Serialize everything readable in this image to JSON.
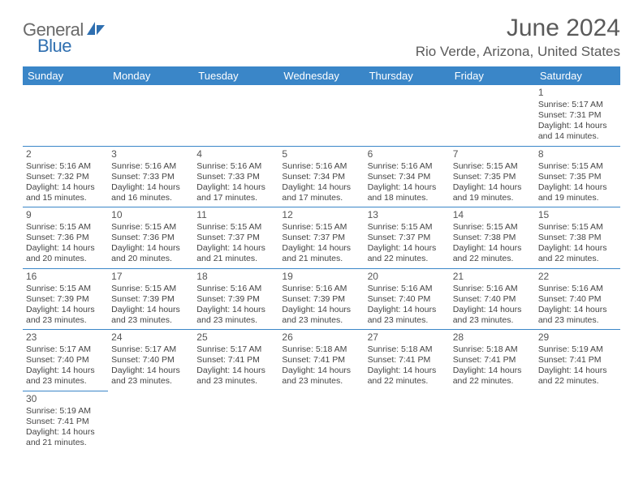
{
  "logo": {
    "text1": "General",
    "text2": "Blue"
  },
  "title": "June 2024",
  "location": "Rio Verde, Arizona, United States",
  "colors": {
    "header_bg": "#3a86c8",
    "header_text": "#ffffff",
    "border": "#3a86c8",
    "text": "#444444",
    "title_text": "#5a5a5a",
    "logo_gray": "#6a6a6a",
    "logo_blue": "#2f6fb0"
  },
  "day_headers": [
    "Sunday",
    "Monday",
    "Tuesday",
    "Wednesday",
    "Thursday",
    "Friday",
    "Saturday"
  ],
  "weeks": [
    [
      null,
      null,
      null,
      null,
      null,
      null,
      {
        "n": "1",
        "sr": "Sunrise: 5:17 AM",
        "ss": "Sunset: 7:31 PM",
        "d1": "Daylight: 14 hours",
        "d2": "and 14 minutes."
      }
    ],
    [
      {
        "n": "2",
        "sr": "Sunrise: 5:16 AM",
        "ss": "Sunset: 7:32 PM",
        "d1": "Daylight: 14 hours",
        "d2": "and 15 minutes."
      },
      {
        "n": "3",
        "sr": "Sunrise: 5:16 AM",
        "ss": "Sunset: 7:33 PM",
        "d1": "Daylight: 14 hours",
        "d2": "and 16 minutes."
      },
      {
        "n": "4",
        "sr": "Sunrise: 5:16 AM",
        "ss": "Sunset: 7:33 PM",
        "d1": "Daylight: 14 hours",
        "d2": "and 17 minutes."
      },
      {
        "n": "5",
        "sr": "Sunrise: 5:16 AM",
        "ss": "Sunset: 7:34 PM",
        "d1": "Daylight: 14 hours",
        "d2": "and 17 minutes."
      },
      {
        "n": "6",
        "sr": "Sunrise: 5:16 AM",
        "ss": "Sunset: 7:34 PM",
        "d1": "Daylight: 14 hours",
        "d2": "and 18 minutes."
      },
      {
        "n": "7",
        "sr": "Sunrise: 5:15 AM",
        "ss": "Sunset: 7:35 PM",
        "d1": "Daylight: 14 hours",
        "d2": "and 19 minutes."
      },
      {
        "n": "8",
        "sr": "Sunrise: 5:15 AM",
        "ss": "Sunset: 7:35 PM",
        "d1": "Daylight: 14 hours",
        "d2": "and 19 minutes."
      }
    ],
    [
      {
        "n": "9",
        "sr": "Sunrise: 5:15 AM",
        "ss": "Sunset: 7:36 PM",
        "d1": "Daylight: 14 hours",
        "d2": "and 20 minutes."
      },
      {
        "n": "10",
        "sr": "Sunrise: 5:15 AM",
        "ss": "Sunset: 7:36 PM",
        "d1": "Daylight: 14 hours",
        "d2": "and 20 minutes."
      },
      {
        "n": "11",
        "sr": "Sunrise: 5:15 AM",
        "ss": "Sunset: 7:37 PM",
        "d1": "Daylight: 14 hours",
        "d2": "and 21 minutes."
      },
      {
        "n": "12",
        "sr": "Sunrise: 5:15 AM",
        "ss": "Sunset: 7:37 PM",
        "d1": "Daylight: 14 hours",
        "d2": "and 21 minutes."
      },
      {
        "n": "13",
        "sr": "Sunrise: 5:15 AM",
        "ss": "Sunset: 7:37 PM",
        "d1": "Daylight: 14 hours",
        "d2": "and 22 minutes."
      },
      {
        "n": "14",
        "sr": "Sunrise: 5:15 AM",
        "ss": "Sunset: 7:38 PM",
        "d1": "Daylight: 14 hours",
        "d2": "and 22 minutes."
      },
      {
        "n": "15",
        "sr": "Sunrise: 5:15 AM",
        "ss": "Sunset: 7:38 PM",
        "d1": "Daylight: 14 hours",
        "d2": "and 22 minutes."
      }
    ],
    [
      {
        "n": "16",
        "sr": "Sunrise: 5:15 AM",
        "ss": "Sunset: 7:39 PM",
        "d1": "Daylight: 14 hours",
        "d2": "and 23 minutes."
      },
      {
        "n": "17",
        "sr": "Sunrise: 5:15 AM",
        "ss": "Sunset: 7:39 PM",
        "d1": "Daylight: 14 hours",
        "d2": "and 23 minutes."
      },
      {
        "n": "18",
        "sr": "Sunrise: 5:16 AM",
        "ss": "Sunset: 7:39 PM",
        "d1": "Daylight: 14 hours",
        "d2": "and 23 minutes."
      },
      {
        "n": "19",
        "sr": "Sunrise: 5:16 AM",
        "ss": "Sunset: 7:39 PM",
        "d1": "Daylight: 14 hours",
        "d2": "and 23 minutes."
      },
      {
        "n": "20",
        "sr": "Sunrise: 5:16 AM",
        "ss": "Sunset: 7:40 PM",
        "d1": "Daylight: 14 hours",
        "d2": "and 23 minutes."
      },
      {
        "n": "21",
        "sr": "Sunrise: 5:16 AM",
        "ss": "Sunset: 7:40 PM",
        "d1": "Daylight: 14 hours",
        "d2": "and 23 minutes."
      },
      {
        "n": "22",
        "sr": "Sunrise: 5:16 AM",
        "ss": "Sunset: 7:40 PM",
        "d1": "Daylight: 14 hours",
        "d2": "and 23 minutes."
      }
    ],
    [
      {
        "n": "23",
        "sr": "Sunrise: 5:17 AM",
        "ss": "Sunset: 7:40 PM",
        "d1": "Daylight: 14 hours",
        "d2": "and 23 minutes."
      },
      {
        "n": "24",
        "sr": "Sunrise: 5:17 AM",
        "ss": "Sunset: 7:40 PM",
        "d1": "Daylight: 14 hours",
        "d2": "and 23 minutes."
      },
      {
        "n": "25",
        "sr": "Sunrise: 5:17 AM",
        "ss": "Sunset: 7:41 PM",
        "d1": "Daylight: 14 hours",
        "d2": "and 23 minutes."
      },
      {
        "n": "26",
        "sr": "Sunrise: 5:18 AM",
        "ss": "Sunset: 7:41 PM",
        "d1": "Daylight: 14 hours",
        "d2": "and 23 minutes."
      },
      {
        "n": "27",
        "sr": "Sunrise: 5:18 AM",
        "ss": "Sunset: 7:41 PM",
        "d1": "Daylight: 14 hours",
        "d2": "and 22 minutes."
      },
      {
        "n": "28",
        "sr": "Sunrise: 5:18 AM",
        "ss": "Sunset: 7:41 PM",
        "d1": "Daylight: 14 hours",
        "d2": "and 22 minutes."
      },
      {
        "n": "29",
        "sr": "Sunrise: 5:19 AM",
        "ss": "Sunset: 7:41 PM",
        "d1": "Daylight: 14 hours",
        "d2": "and 22 minutes."
      }
    ],
    [
      {
        "n": "30",
        "sr": "Sunrise: 5:19 AM",
        "ss": "Sunset: 7:41 PM",
        "d1": "Daylight: 14 hours",
        "d2": "and 21 minutes."
      },
      null,
      null,
      null,
      null,
      null,
      null
    ]
  ]
}
